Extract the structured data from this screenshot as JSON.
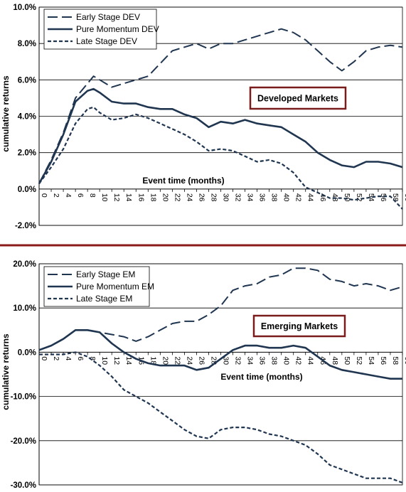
{
  "chart_data": [
    {
      "type": "line",
      "title": "",
      "xlabel": "Event time (months)",
      "ylabel": "cumulative returns",
      "annotation": "Developed Markets",
      "xlim": [
        0,
        60
      ],
      "ylim": [
        -2.0,
        10.0
      ],
      "y_ticks": [
        "-2.0%",
        "0.0%",
        "2.0%",
        "4.0%",
        "6.0%",
        "8.0%",
        "10.0%"
      ],
      "y_tick_values": [
        -2,
        0,
        2,
        4,
        6,
        8,
        10
      ],
      "x_ticks": [
        "0",
        "2",
        "4",
        "6",
        "8",
        "10",
        "12",
        "14",
        "16",
        "18",
        "20",
        "22",
        "24",
        "26",
        "28",
        "30",
        "32",
        "34",
        "36",
        "38",
        "40",
        "42",
        "44",
        "46",
        "48",
        "50",
        "52",
        "54",
        "56",
        "58",
        "60"
      ],
      "grid": "horizontal",
      "legend_position": "top-left",
      "series": [
        {
          "name": "Early Stage DEV",
          "style": "long-dash",
          "x": [
            0,
            2,
            4,
            6,
            8,
            9,
            10,
            12,
            14,
            16,
            18,
            20,
            22,
            24,
            26,
            28,
            30,
            32,
            34,
            36,
            38,
            40,
            42,
            44,
            46,
            48,
            50,
            52,
            54,
            56,
            58,
            60
          ],
          "values": [
            0.3,
            1.6,
            3.1,
            5.0,
            5.8,
            6.2,
            6.0,
            5.6,
            5.8,
            6.0,
            6.2,
            6.9,
            7.6,
            7.8,
            8.0,
            7.7,
            8.0,
            8.0,
            8.2,
            8.4,
            8.6,
            8.8,
            8.6,
            8.2,
            7.6,
            7.0,
            6.5,
            7.0,
            7.6,
            7.8,
            7.9,
            7.8
          ]
        },
        {
          "name": "Pure Momentum DEV",
          "style": "solid",
          "x": [
            0,
            2,
            4,
            6,
            8,
            9,
            10,
            12,
            14,
            16,
            18,
            20,
            22,
            24,
            26,
            28,
            30,
            32,
            34,
            36,
            38,
            40,
            42,
            44,
            46,
            48,
            50,
            52,
            54,
            56,
            58,
            60
          ],
          "values": [
            0.3,
            1.5,
            3.0,
            4.8,
            5.4,
            5.5,
            5.3,
            4.8,
            4.7,
            4.7,
            4.5,
            4.4,
            4.4,
            4.1,
            3.9,
            3.4,
            3.7,
            3.6,
            3.8,
            3.6,
            3.5,
            3.4,
            3.0,
            2.6,
            2.0,
            1.6,
            1.3,
            1.2,
            1.5,
            1.5,
            1.4,
            1.2
          ]
        },
        {
          "name": "Late Stage DEV",
          "style": "short-dash",
          "x": [
            0,
            2,
            4,
            6,
            8,
            9,
            10,
            12,
            14,
            16,
            18,
            20,
            22,
            24,
            26,
            28,
            30,
            32,
            34,
            36,
            38,
            40,
            42,
            44,
            46,
            48,
            50,
            52,
            54,
            56,
            58,
            60
          ],
          "values": [
            0.3,
            1.2,
            2.2,
            3.6,
            4.4,
            4.5,
            4.2,
            3.8,
            3.9,
            4.1,
            3.9,
            3.6,
            3.3,
            3.0,
            2.6,
            2.1,
            2.2,
            2.1,
            1.8,
            1.5,
            1.6,
            1.4,
            0.9,
            0.1,
            -0.2,
            -0.5,
            -0.5,
            -0.6,
            -0.5,
            -0.4,
            -0.4,
            -1.1
          ]
        }
      ]
    },
    {
      "type": "line",
      "title": "",
      "xlabel": "Event time (months)",
      "ylabel": "cumulative returns",
      "annotation": "Emerging Markets",
      "xlim": [
        0,
        60
      ],
      "ylim": [
        -30.0,
        20.0
      ],
      "y_ticks": [
        "-30.0%",
        "-20.0%",
        "-10.0%",
        "0.0%",
        "10.0%",
        "20.0%"
      ],
      "y_tick_values": [
        -30,
        -20,
        -10,
        0,
        10,
        20
      ],
      "x_ticks": [
        "0",
        "2",
        "4",
        "6",
        "8",
        "10",
        "12",
        "14",
        "16",
        "18",
        "20",
        "22",
        "24",
        "26",
        "28",
        "30",
        "32",
        "34",
        "36",
        "38",
        "40",
        "42",
        "44",
        "46",
        "48",
        "50",
        "52",
        "54",
        "56",
        "58",
        "60"
      ],
      "grid": "horizontal",
      "legend_position": "top-left",
      "series": [
        {
          "name": "Early Stage EM",
          "style": "long-dash",
          "x": [
            0,
            2,
            4,
            6,
            8,
            10,
            12,
            14,
            16,
            18,
            20,
            22,
            24,
            26,
            28,
            30,
            32,
            34,
            36,
            38,
            40,
            42,
            44,
            46,
            48,
            50,
            52,
            54,
            56,
            58,
            60
          ],
          "values": [
            0.5,
            1.5,
            3.0,
            5.0,
            5.0,
            4.5,
            4.0,
            3.5,
            2.5,
            3.5,
            5.0,
            6.5,
            7.0,
            7.0,
            8.5,
            10.5,
            14.0,
            15.0,
            15.5,
            17.0,
            17.5,
            19.0,
            19.0,
            18.5,
            16.5,
            16.0,
            15.0,
            15.5,
            15.0,
            14.0,
            14.8
          ]
        },
        {
          "name": "Pure Momentum EM",
          "style": "solid",
          "x": [
            0,
            2,
            4,
            6,
            8,
            10,
            12,
            14,
            16,
            18,
            20,
            22,
            24,
            26,
            28,
            30,
            32,
            34,
            36,
            38,
            40,
            42,
            44,
            46,
            48,
            50,
            52,
            54,
            56,
            58,
            60
          ],
          "values": [
            0.5,
            1.5,
            3.0,
            5.0,
            5.0,
            4.5,
            2.0,
            0.0,
            -1.5,
            -2.5,
            -3.0,
            -3.0,
            -3.0,
            -4.0,
            -3.5,
            -1.5,
            0.5,
            1.5,
            1.5,
            1.0,
            1.0,
            1.5,
            1.0,
            -1.0,
            -3.0,
            -4.0,
            -4.5,
            -5.0,
            -5.5,
            -6.0,
            -6.0
          ]
        },
        {
          "name": "Late Stage EM",
          "style": "short-dash",
          "x": [
            0,
            2,
            4,
            6,
            8,
            10,
            12,
            14,
            16,
            18,
            20,
            22,
            24,
            26,
            28,
            30,
            32,
            34,
            36,
            38,
            40,
            42,
            44,
            46,
            48,
            50,
            52,
            54,
            56,
            58,
            60
          ],
          "values": [
            -0.5,
            -0.5,
            -0.5,
            0.0,
            -1.0,
            -3.0,
            -5.5,
            -8.5,
            -10.0,
            -11.5,
            -13.5,
            -15.5,
            -17.5,
            -19.0,
            -19.5,
            -17.5,
            -17.0,
            -17.0,
            -17.5,
            -18.5,
            -19.0,
            -20.0,
            -21.0,
            -23.0,
            -25.5,
            -26.5,
            -27.5,
            -28.5,
            -28.5,
            -28.5,
            -29.5
          ]
        }
      ]
    }
  ]
}
